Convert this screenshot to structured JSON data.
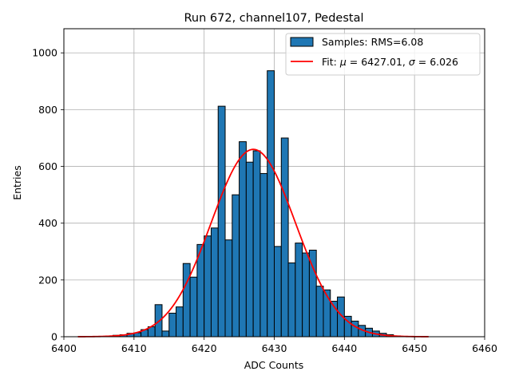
{
  "chart_data": {
    "type": "bar",
    "title": "Run 672, channel107, Pedestal",
    "xlabel": "ADC Counts",
    "ylabel": "Entries",
    "xlim": [
      6400,
      6460
    ],
    "ylim": [
      0,
      1085
    ],
    "xticks": [
      6400,
      6410,
      6420,
      6430,
      6440,
      6450,
      6460
    ],
    "yticks": [
      0,
      200,
      400,
      600,
      800,
      1000
    ],
    "grid": true,
    "legend_position": "top-right",
    "bin_width": 1,
    "series": [
      {
        "name": "Samples: RMS=6.08",
        "kind": "histogram",
        "color": "#1f77b4",
        "edgecolor": "#000000",
        "bin_left_edges": [
          6406,
          6407,
          6408,
          6409,
          6410,
          6411,
          6412,
          6413,
          6414,
          6415,
          6416,
          6417,
          6418,
          6419,
          6420,
          6421,
          6422,
          6423,
          6424,
          6425,
          6426,
          6427,
          6428,
          6429,
          6430,
          6431,
          6432,
          6433,
          6434,
          6435,
          6436,
          6437,
          6438,
          6439,
          6440,
          6441,
          6442,
          6443,
          6444,
          6445,
          6446,
          6447,
          6448
        ],
        "values": [
          2,
          5,
          7,
          12,
          14,
          25,
          35,
          113,
          20,
          83,
          105,
          258,
          210,
          325,
          355,
          383,
          812,
          341,
          500,
          687,
          615,
          655,
          575,
          937,
          318,
          700,
          260,
          330,
          295,
          305,
          178,
          165,
          125,
          140,
          72,
          55,
          40,
          30,
          20,
          12,
          7,
          3,
          1
        ]
      },
      {
        "name": "Fit: μ = 6427.01, σ = 6.026",
        "kind": "gaussian",
        "color": "#ff0000",
        "mu": 6427.01,
        "sigma": 6.026,
        "amplitude": 660,
        "x_range": [
          6402,
          6452
        ]
      }
    ],
    "legend": [
      {
        "label": "Samples: RMS=6.08"
      },
      {
        "label": "Fit: μ = 6427.01, σ = 6.026"
      }
    ]
  }
}
